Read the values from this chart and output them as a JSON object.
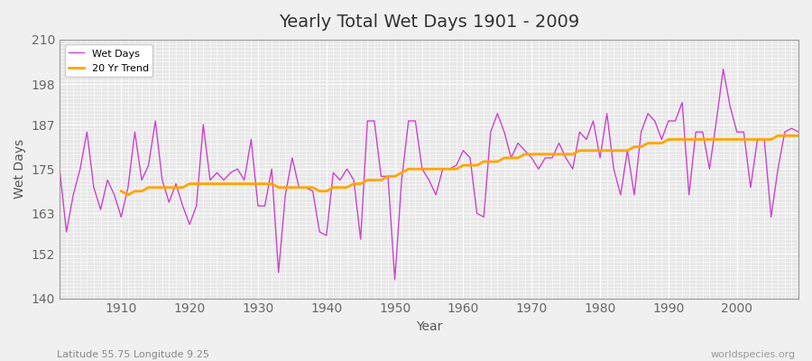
{
  "title": "Yearly Total Wet Days 1901 - 2009",
  "xlabel": "Year",
  "ylabel": "Wet Days",
  "subtitle": "Latitude 55.75 Longitude 9.25",
  "watermark": "worldspecies.org",
  "ylim": [
    140,
    210
  ],
  "yticks": [
    140,
    152,
    163,
    175,
    187,
    198,
    210
  ],
  "line_color": "#CC44CC",
  "trend_color": "#FFA500",
  "legend_labels": [
    "Wet Days",
    "20 Yr Trend"
  ],
  "years": [
    1901,
    1902,
    1903,
    1904,
    1905,
    1906,
    1907,
    1908,
    1909,
    1910,
    1911,
    1912,
    1913,
    1914,
    1915,
    1916,
    1917,
    1918,
    1919,
    1920,
    1921,
    1922,
    1923,
    1924,
    1925,
    1926,
    1927,
    1928,
    1929,
    1930,
    1931,
    1932,
    1933,
    1934,
    1935,
    1936,
    1937,
    1938,
    1939,
    1940,
    1941,
    1942,
    1943,
    1944,
    1945,
    1946,
    1947,
    1948,
    1949,
    1950,
    1951,
    1952,
    1953,
    1954,
    1955,
    1956,
    1957,
    1958,
    1959,
    1960,
    1961,
    1962,
    1963,
    1964,
    1965,
    1966,
    1967,
    1968,
    1969,
    1970,
    1971,
    1972,
    1973,
    1974,
    1975,
    1976,
    1977,
    1978,
    1979,
    1980,
    1981,
    1982,
    1983,
    1984,
    1985,
    1986,
    1987,
    1988,
    1989,
    1990,
    1991,
    1992,
    1993,
    1994,
    1995,
    1996,
    1997,
    1998,
    1999,
    2000,
    2001,
    2002,
    2003,
    2004,
    2005,
    2006,
    2007,
    2008,
    2009
  ],
  "wet_days": [
    175,
    158,
    168,
    175,
    185,
    170,
    164,
    172,
    168,
    162,
    170,
    185,
    172,
    176,
    188,
    172,
    166,
    171,
    165,
    160,
    165,
    187,
    172,
    174,
    172,
    174,
    175,
    172,
    183,
    165,
    165,
    175,
    147,
    168,
    178,
    170,
    170,
    169,
    158,
    157,
    174,
    172,
    175,
    172,
    156,
    188,
    188,
    173,
    173,
    145,
    172,
    188,
    188,
    175,
    172,
    168,
    175,
    175,
    176,
    180,
    178,
    163,
    162,
    185,
    190,
    185,
    178,
    182,
    180,
    178,
    175,
    178,
    178,
    182,
    178,
    175,
    185,
    183,
    188,
    178,
    190,
    175,
    168,
    180,
    168,
    185,
    190,
    188,
    183,
    188,
    188,
    193,
    168,
    185,
    185,
    175,
    188,
    202,
    192,
    185,
    185,
    170,
    183,
    183,
    162,
    175,
    185,
    186,
    185
  ],
  "trend_years": [
    1910,
    1911,
    1912,
    1913,
    1914,
    1915,
    1916,
    1917,
    1918,
    1919,
    1920,
    1921,
    1922,
    1923,
    1924,
    1925,
    1926,
    1927,
    1928,
    1929,
    1930,
    1931,
    1932,
    1933,
    1934,
    1935,
    1936,
    1937,
    1938,
    1939,
    1940,
    1941,
    1942,
    1943,
    1944,
    1945,
    1946,
    1947,
    1948,
    1949,
    1950,
    1951,
    1952,
    1953,
    1954,
    1955,
    1956,
    1957,
    1958,
    1959,
    1960,
    1961,
    1962,
    1963,
    1964,
    1965,
    1966,
    1967,
    1968,
    1969,
    1970,
    1971,
    1972,
    1973,
    1974,
    1975,
    1976,
    1977,
    1978,
    1979,
    1980,
    1981,
    1982,
    1983,
    1984,
    1985,
    1986,
    1987,
    1988,
    1989,
    1990,
    1991,
    1992,
    1993,
    1994,
    1995,
    1996,
    1997,
    1998,
    1999,
    2000,
    2001,
    2002,
    2003,
    2004,
    2005,
    2006,
    2007,
    2008,
    2009
  ],
  "trend_values": [
    169,
    168,
    169,
    169,
    170,
    170,
    170,
    170,
    170,
    170,
    171,
    171,
    171,
    171,
    171,
    171,
    171,
    171,
    171,
    171,
    171,
    171,
    171,
    170,
    170,
    170,
    170,
    170,
    170,
    169,
    169,
    170,
    170,
    170,
    171,
    171,
    172,
    172,
    172,
    173,
    173,
    174,
    175,
    175,
    175,
    175,
    175,
    175,
    175,
    175,
    176,
    176,
    176,
    177,
    177,
    177,
    178,
    178,
    178,
    179,
    179,
    179,
    179,
    179,
    179,
    179,
    179,
    180,
    180,
    180,
    180,
    180,
    180,
    180,
    180,
    181,
    181,
    182,
    182,
    182,
    183,
    183,
    183,
    183,
    183,
    183,
    183,
    183,
    183,
    183,
    183,
    183,
    183,
    183,
    183,
    183,
    184,
    184,
    184,
    184
  ]
}
